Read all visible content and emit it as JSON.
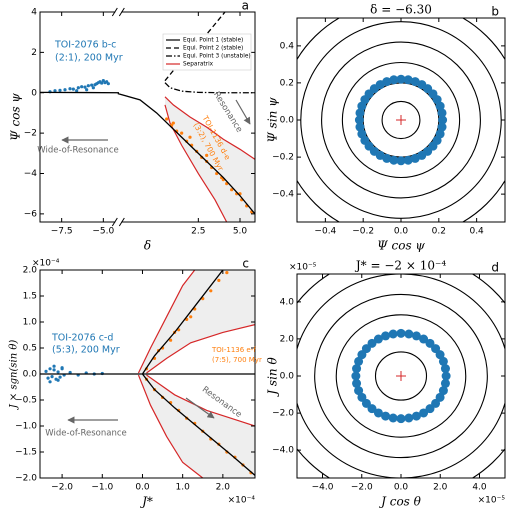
{
  "chart_data": [
    {
      "type": "scatter",
      "panel_label": "a",
      "xlabel": "δ",
      "ylabel": "Ψ cos ψ",
      "xlim": [
        -8.8,
        5.9
      ],
      "xbreak": [
        -4.1,
        -2.3
      ],
      "ylim": [
        -6.4,
        4
      ],
      "xticks": [
        {
          "value": -7.5,
          "label": "−7.5"
        },
        {
          "value": -5,
          "label": "−5.0"
        },
        2.5,
        {
          "value": 5,
          "label": "5.0"
        }
      ],
      "yticks": [
        4,
        2,
        0,
        {
          "value": -2,
          "label": "−2"
        },
        {
          "value": -4,
          "label": "−4"
        },
        {
          "value": -6,
          "label": "−6"
        }
      ],
      "separatrix": [
        {
          "corner": "bottom-right",
          "color": "#d62728",
          "fill": "#eeeeee",
          "lines": [
            {
              "x": [
                0.5,
                1,
                2,
                3,
                4,
                5,
                5.9
              ],
              "y": [
                -0.2,
                -0.6,
                -1.2,
                -1.7,
                -2.3,
                -2.8,
                -3.3
              ]
            },
            {
              "x": [
                0.5,
                0.8,
                1.5,
                2.5,
                3.5,
                4.2
              ],
              "y": [
                -0.6,
                -1.5,
                -2.6,
                -4.0,
                -5.3,
                -6.4
              ]
            }
          ]
        }
      ],
      "series": [
        {
          "label_lines": [
            "TOI-2076 b-c",
            "(2:1), 200 Myr"
          ],
          "color": "#1f77b4",
          "x": [
            -8.2,
            -7.9,
            -7.6,
            -7.3,
            -7.0,
            -6.8,
            -6.5,
            -6.3,
            -6.1,
            -5.9,
            -5.7,
            -5.5,
            -5.4,
            -5.3,
            -5.2,
            -5.1,
            -5.0,
            -4.9,
            -4.8,
            -4.7,
            -6.6,
            -6.0,
            -5.6
          ],
          "y": [
            0.05,
            0.1,
            0.12,
            0.15,
            0.2,
            0.18,
            0.25,
            0.3,
            0.28,
            0.35,
            0.38,
            0.4,
            0.45,
            0.5,
            0.55,
            0.48,
            0.6,
            0.5,
            0.55,
            0.45,
            0.1,
            0.15,
            0.25
          ]
        },
        {
          "label_lines": [
            "TOI-1136 d-e",
            "(3:2), 700 Myr"
          ],
          "color": "#ff7f0e",
          "x": [
            0.6,
            0.9,
            1.2,
            1.5,
            1.8,
            2.1,
            2.4,
            2.7,
            3.0,
            3.3,
            3.6,
            3.9,
            4.2,
            4.5,
            4.8,
            5.1,
            5.4,
            5.7,
            1.0,
            2.0,
            3.0,
            4.0,
            5.0
          ],
          "y": [
            -1.3,
            -1.6,
            -1.9,
            -2.0,
            -2.4,
            -2.6,
            -2.9,
            -3.2,
            -3.4,
            -3.7,
            -4.0,
            -4.2,
            -4.5,
            -4.8,
            -5.0,
            -5.3,
            -5.6,
            -5.9,
            -1.5,
            -2.2,
            -3.1,
            -4.3,
            -5.0
          ]
        }
      ],
      "lines": [
        {
          "name": "Equi. Point 1 (stable)",
          "color": "#000000",
          "dash": "solid",
          "x": [
            -8.8,
            -6,
            -4.1,
            -2.3,
            -1,
            0,
            1,
            2.5,
            4,
            5,
            5.9
          ],
          "y": [
            0.02,
            0.01,
            0,
            -0.05,
            -0.35,
            -1.0,
            -1.8,
            -3.0,
            -4.2,
            -5.1,
            -6.0
          ]
        },
        {
          "name": "Equi. Point 2 (stable)",
          "color": "#000000",
          "dash": "dashed",
          "x": [
            0.5,
            1,
            2,
            3,
            4.1
          ],
          "y": [
            0.6,
            1.1,
            1.9,
            2.9,
            4.0
          ]
        },
        {
          "name": "Equi. Point 3 (unstable)",
          "color": "#000000",
          "dash": "dashdot",
          "x": [
            0.5,
            0.8,
            1.5,
            2.5,
            4,
            5.9
          ],
          "y": [
            0.5,
            0.25,
            0.08,
            0.02,
            0,
            0
          ]
        }
      ],
      "legend": {
        "corner": "top-right",
        "separatrix_name": "Separatrix"
      },
      "annotations": [
        {
          "text": "Wide-of-Resonance",
          "color": "#666666"
        },
        {
          "text": "Resonance",
          "color": "#666666"
        }
      ]
    },
    {
      "type": "phase",
      "panel_label": "b",
      "title": "δ = −6.30",
      "xlabel": "Ψ cos ψ",
      "ylabel": "Ψ sin ψ",
      "xlim": [
        -0.55,
        0.55
      ],
      "ylim": [
        -0.55,
        0.55
      ],
      "xticks": [
        {
          "value": -0.4,
          "label": "−0.4"
        },
        {
          "value": -0.2,
          "label": "−0.2"
        },
        {
          "value": 0,
          "label": "0.0"
        },
        0.2,
        0.4
      ],
      "yticks": [
        {
          "value": -0.4,
          "label": "−0.4"
        },
        {
          "value": -0.2,
          "label": "−0.2"
        },
        {
          "value": 0,
          "label": "0.0"
        },
        0.2,
        0.4
      ],
      "contour_radii": [
        0.1,
        0.2,
        0.31,
        0.42,
        0.53,
        0.64
      ],
      "equilibrium": {
        "x": 0,
        "y": 0,
        "color": "#d62728"
      },
      "series": [
        {
          "color": "#1f77b4",
          "x": [
            0.22,
            0.217,
            0.207,
            0.191,
            0.169,
            0.141,
            0.11,
            0.075,
            0.038,
            0,
            -0.038,
            -0.075,
            -0.11,
            -0.141,
            -0.169,
            -0.191,
            -0.207,
            -0.217,
            -0.22,
            -0.217,
            -0.207,
            -0.191,
            -0.169,
            -0.141,
            -0.11,
            -0.075,
            -0.038,
            0,
            0.038,
            0.075,
            0.11,
            0.141,
            0.169,
            0.191,
            0.207,
            0.217
          ],
          "y": [
            0,
            0.038,
            0.075,
            0.11,
            0.141,
            0.169,
            0.191,
            0.207,
            0.217,
            0.22,
            0.217,
            0.207,
            0.191,
            0.169,
            0.141,
            0.11,
            0.075,
            0.038,
            0,
            -0.038,
            -0.075,
            -0.11,
            -0.141,
            -0.169,
            -0.191,
            -0.207,
            -0.217,
            -0.22,
            -0.217,
            -0.207,
            -0.191,
            -0.169,
            -0.141,
            -0.11,
            -0.075,
            -0.038
          ]
        }
      ]
    },
    {
      "type": "scatter",
      "panel_label": "c",
      "xlabel": "J*",
      "ylabel": "J × sgn(sin θ)",
      "x_offset_label": "×10⁻⁴",
      "y_offset_label": "×10⁻⁴",
      "xlim": [
        -2.55,
        2.8
      ],
      "ylim": [
        -2,
        2
      ],
      "xticks": [
        {
          "value": -2,
          "label": "−2.0"
        },
        {
          "value": -1,
          "label": "−1.0"
        },
        {
          "value": 0,
          "label": "0.0"
        },
        {
          "value": 1,
          "label": "1.0"
        },
        {
          "value": 2,
          "label": "2.0"
        }
      ],
      "yticks": [
        {
          "value": -2,
          "label": "−2.0"
        },
        {
          "value": -1.5,
          "label": "−1.5"
        },
        {
          "value": -1,
          "label": "−1.0"
        },
        {
          "value": -0.5,
          "label": "−0.5"
        },
        {
          "value": 0,
          "label": "0.0"
        },
        0.5,
        {
          "value": 1,
          "label": "1.0"
        },
        1.5,
        {
          "value": 2,
          "label": "2.0"
        }
      ],
      "separatrix": [
        {
          "corner": "top-right",
          "color": "#d62728",
          "fill": "#eeeeee",
          "lines": [
            {
              "x": [
                -0.1,
                0.2,
                0.6,
                1.0,
                1.3
              ],
              "y": [
                0.02,
                0.5,
                1.1,
                1.7,
                2.0
              ]
            },
            {
              "x": [
                0.1,
                0.6,
                1.2,
                2.0,
                2.8
              ],
              "y": [
                0.02,
                0.3,
                0.6,
                0.8,
                0.95
              ]
            }
          ]
        },
        {
          "corner": "bottom-right",
          "color": "#d62728",
          "fill": "#eeeeee",
          "lines": [
            {
              "x": [
                -0.1,
                0.2,
                0.6,
                1.0,
                1.5
              ],
              "y": [
                -0.02,
                -0.6,
                -1.2,
                -1.7,
                -2.0
              ]
            },
            {
              "x": [
                0.1,
                0.8,
                1.6,
                2.4,
                2.8
              ],
              "y": [
                -0.02,
                -0.4,
                -0.7,
                -0.9,
                -1.0
              ]
            }
          ]
        }
      ],
      "lines": [
        {
          "color": "#000000",
          "dash": "solid",
          "x": [
            -2.55,
            2.8
          ],
          "y": [
            0,
            0
          ]
        },
        {
          "color": "#000000",
          "dash": "solid",
          "x": [
            0,
            0.3,
            0.8,
            1.4,
            2.0
          ],
          "y": [
            0,
            0.35,
            0.8,
            1.4,
            2.0
          ]
        },
        {
          "color": "#000000",
          "dash": "solid",
          "x": [
            0,
            0.3,
            0.8,
            1.5,
            2.2,
            2.8
          ],
          "y": [
            0,
            -0.3,
            -0.65,
            -1.1,
            -1.55,
            -1.95
          ]
        }
      ],
      "series": [
        {
          "label_lines": [
            "TOI-2076 c-d",
            "(5:3), 200 Myr"
          ],
          "color": "#1f77b4",
          "x": [
            -2.4,
            -2.35,
            -2.3,
            -2.25,
            -2.2,
            -2.15,
            -2.1,
            -2.05,
            -2.0,
            -1.95,
            -2.3,
            -2.2,
            -2.1,
            -2.0,
            -1.8,
            -1.6,
            -1.4,
            -1.2,
            -1.0
          ],
          "y": [
            0.05,
            -0.08,
            0.1,
            -0.05,
            0.08,
            -0.1,
            0.04,
            -0.06,
            0.1,
            -0.02,
            -0.15,
            0.15,
            -0.12,
            0.12,
            0.03,
            -0.02,
            0.02,
            0.0,
            0.01
          ]
        },
        {
          "label_lines": [
            "TOI-1136 e-f",
            "(7:5), 700 Myr"
          ],
          "color": "#ff7f0e",
          "x": [
            0.1,
            0.3,
            0.5,
            0.7,
            0.9,
            1.1,
            1.3,
            1.5,
            1.7,
            1.9,
            2.1,
            0.4,
            0.8,
            1.2,
            0.1,
            0.3,
            0.5,
            0.7,
            0.9,
            1.1,
            1.3,
            1.5,
            1.7,
            1.9,
            2.1,
            2.3,
            2.5,
            2.7
          ],
          "y": [
            0.1,
            0.3,
            0.5,
            0.65,
            0.85,
            1.05,
            1.25,
            1.45,
            1.6,
            1.8,
            1.95,
            0.45,
            0.8,
            1.1,
            -0.1,
            -0.3,
            -0.45,
            -0.55,
            -0.7,
            -0.85,
            -0.95,
            -1.1,
            -1.25,
            -1.35,
            -1.5,
            -1.6,
            -1.75,
            -1.9
          ]
        }
      ],
      "annotations": [
        {
          "text": "Resonance",
          "color": "#666666"
        },
        {
          "text": "Wide-of-Resonance",
          "color": "#666666"
        }
      ]
    },
    {
      "type": "phase",
      "panel_label": "d",
      "title": "J* = −2 × 10⁻⁴",
      "xlabel": "J cos θ",
      "ylabel": "J sin θ",
      "x_offset_label": "×10⁻⁵",
      "y_offset_label": "×10⁻⁵",
      "xlim": [
        -5.3,
        5.3
      ],
      "ylim": [
        -5.5,
        5.5
      ],
      "xticks": [
        {
          "value": -4,
          "label": "−4.0"
        },
        {
          "value": -2,
          "label": "−2.0"
        },
        {
          "value": 0,
          "label": "0.0"
        },
        {
          "value": 2,
          "label": "2.0"
        },
        {
          "value": 4,
          "label": "4.0"
        }
      ],
      "yticks": [
        {
          "value": -4,
          "label": "−4.0"
        },
        {
          "value": -2,
          "label": "−2.0"
        },
        {
          "value": 0,
          "label": "0.0"
        },
        {
          "value": 2,
          "label": "2.0"
        },
        {
          "value": 4,
          "label": "4.0"
        }
      ],
      "contour_radii": [
        1.3,
        2.3,
        3.3,
        4.4,
        5.5,
        6.6
      ],
      "equilibrium": {
        "x": 0,
        "y": 0,
        "color": "#d62728"
      },
      "series": [
        {
          "color": "#1f77b4",
          "x": [
            2.3,
            2.265,
            2.161,
            1.992,
            1.762,
            1.478,
            1.15,
            0.787,
            0.4,
            0,
            -0.4,
            -0.787,
            -1.15,
            -1.478,
            -1.762,
            -1.992,
            -2.161,
            -2.265,
            -2.3,
            -2.265,
            -2.161,
            -1.992,
            -1.762,
            -1.478,
            -1.15,
            -0.787,
            -0.4,
            0,
            0.4,
            0.787,
            1.15,
            1.478,
            1.762,
            1.992,
            2.161,
            2.265
          ],
          "y": [
            0,
            0.4,
            0.787,
            1.15,
            1.478,
            1.762,
            1.992,
            2.161,
            2.265,
            2.3,
            2.265,
            2.161,
            1.992,
            1.762,
            1.478,
            1.15,
            0.787,
            0.4,
            0,
            -0.4,
            -0.787,
            -1.15,
            -1.478,
            -1.762,
            -1.992,
            -2.161,
            -2.265,
            -2.3,
            -2.265,
            -2.161,
            -1.992,
            -1.762,
            -1.478,
            -1.15,
            -0.787,
            -0.4
          ]
        }
      ]
    }
  ]
}
